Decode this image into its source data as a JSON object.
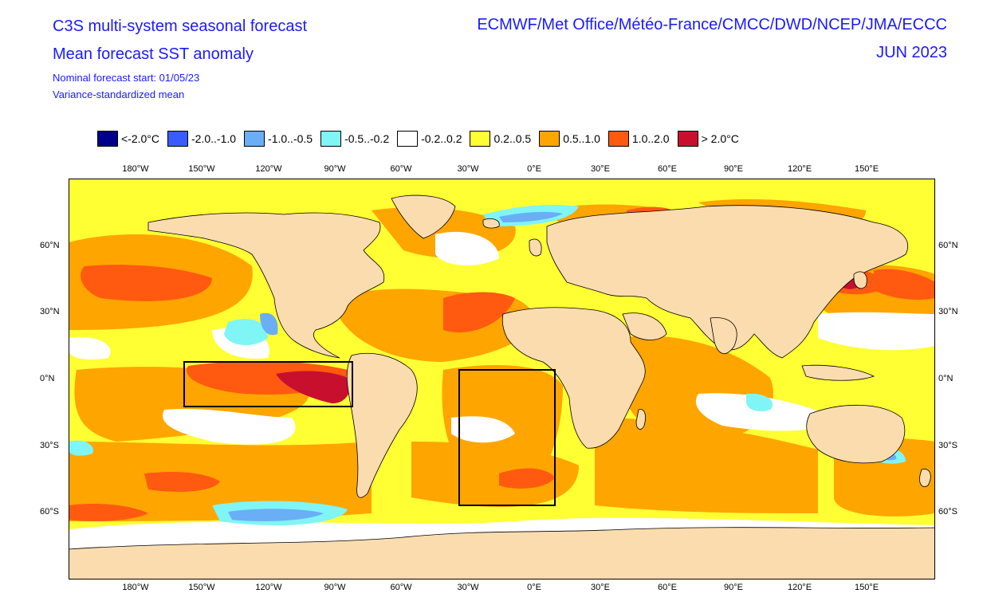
{
  "header": {
    "title_line1": "C3S multi-system seasonal forecast",
    "title_line2": "Mean forecast SST anomaly",
    "subtitle_line1": "Nominal forecast start: 01/05/23",
    "subtitle_line2": "Variance-standardized mean",
    "centres": "ECMWF/Met Office/Météo-France/CMCC/DWD/NCEP/JMA/ECCC",
    "valid_month": "JUN 2023"
  },
  "legend": [
    {
      "label": "<-2.0°C",
      "color": "#00008b"
    },
    {
      "label": "-2.0..-1.0",
      "color": "#3a5cff"
    },
    {
      "label": "-1.0..-0.5",
      "color": "#6aaef6"
    },
    {
      "label": "-0.5..-0.2",
      "color": "#7ff5f5"
    },
    {
      "label": "-0.2..0.2",
      "color": "#ffffff"
    },
    {
      "label": "0.2..0.5",
      "color": "#ffff33"
    },
    {
      "label": "0.5..1.0",
      "color": "#ffa500"
    },
    {
      "label": "1.0..2.0",
      "color": "#ff5a10"
    },
    {
      "label": "> 2.0°C",
      "color": "#c8102e"
    }
  ],
  "axes": {
    "lon_ticks": [
      "180°W",
      "150°W",
      "120°W",
      "90°W",
      "60°W",
      "30°W",
      "0°E",
      "30°E",
      "60°E",
      "90°E",
      "120°E",
      "150°E"
    ],
    "lat_ticks": [
      "60°N",
      "30°N",
      "0°N",
      "30°S",
      "60°S"
    ]
  },
  "colors": {
    "land": "#fbdcae",
    "ocean_base": "#ffff33",
    "warm": "#ffa500",
    "hot": "#ff5a10",
    "extreme": "#c8102e",
    "cool1": "#7ff5f5",
    "cool2": "#6aaef6",
    "cool3": "#3a5cff",
    "neutral": "#ffffff",
    "border": "#000000",
    "region_box": "#000000"
  }
}
